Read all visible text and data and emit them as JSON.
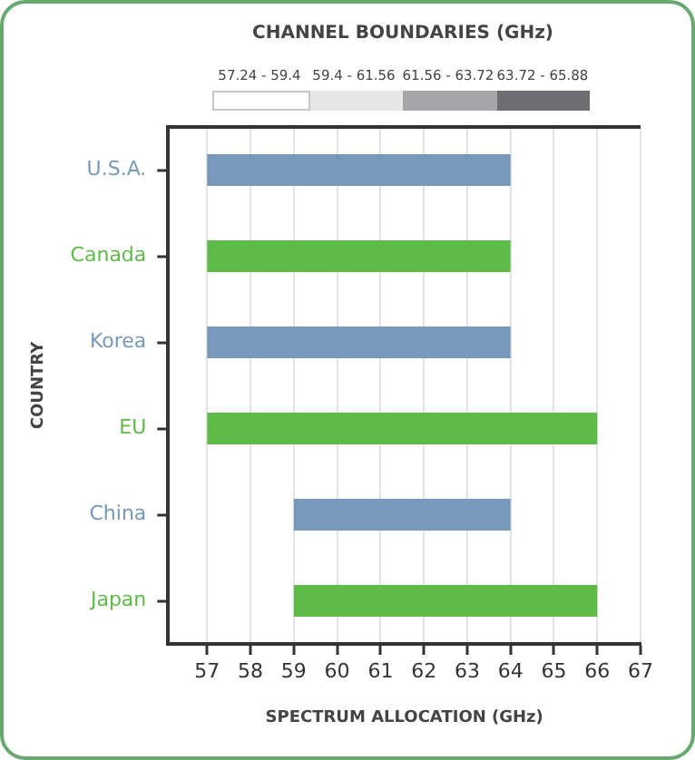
{
  "chart_data": {
    "type": "bar",
    "orientation": "horizontal",
    "xlabel": "SPECTRUM ALLOCATION (GHz)",
    "ylabel": "COUNTRY",
    "legend_title": "CHANNEL BOUNDARIES (GHz)",
    "categories": [
      "U.S.A.",
      "Canada",
      "Korea",
      "EU",
      "China",
      "Japan"
    ],
    "base": [
      57,
      57,
      57,
      57,
      59,
      59
    ],
    "values": [
      7,
      7,
      7,
      9,
      5,
      7
    ],
    "colors": [
      "#7799bb",
      "#5fbb47",
      "#7799bb",
      "#5fbb47",
      "#7799bb",
      "#5fbb47"
    ],
    "xlim": [
      56.1,
      67
    ],
    "xticks": [
      57,
      58,
      59,
      60,
      61,
      62,
      63,
      64,
      65,
      66,
      67
    ],
    "grid": "x",
    "annotations": [
      "57.24 - 59.4",
      "59.4 - 61.56",
      "61.56 - 63.72",
      "63.72 - 65.88"
    ]
  }
}
